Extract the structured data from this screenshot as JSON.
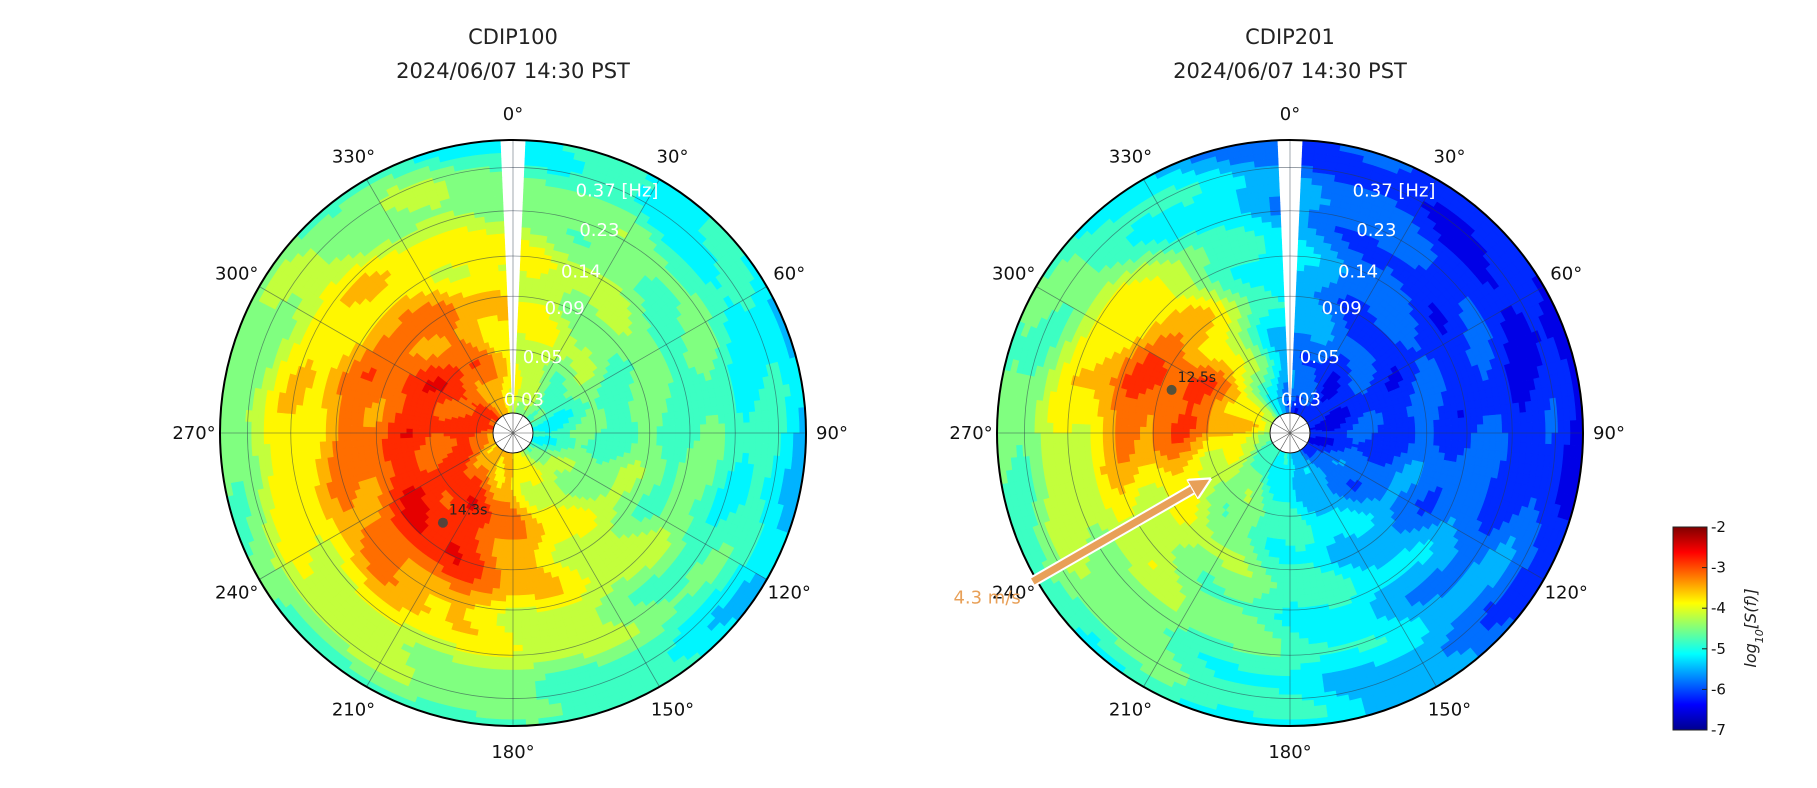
{
  "chart_data": [
    {
      "type": "heatmap",
      "subtype": "polar directional wave spectrum",
      "title": "CDIP100",
      "subtitle": "2024/06/07 14:30 PST",
      "angle_ticks": [
        "0°",
        "30°",
        "60°",
        "90°",
        "120°",
        "150°",
        "180°",
        "210°",
        "240°",
        "270°",
        "300°",
        "330°"
      ],
      "radial_ticks": [
        {
          "value": 0.03,
          "label": "0.03"
        },
        {
          "value": 0.05,
          "label": "0.05"
        },
        {
          "value": 0.09,
          "label": "0.09"
        },
        {
          "value": 0.14,
          "label": "0.14"
        },
        {
          "value": 0.23,
          "label": "0.23"
        },
        {
          "value": 0.37,
          "label": "0.37 [Hz]"
        }
      ],
      "radial_scale": "log",
      "clockwise": true,
      "zero_direction": "top",
      "background_level": -6.0,
      "blobs": [
        {
          "dir": 292,
          "freq": 0.045,
          "level": -3.0,
          "spread_dir": 28,
          "spread_logf": 0.22
        },
        {
          "dir": 218,
          "freq": 0.07,
          "level": -2.8,
          "spread_dir": 20,
          "spread_logf": 0.15
        },
        {
          "dir": 255,
          "freq": 0.06,
          "level": -3.3,
          "spread_dir": 55,
          "spread_logf": 0.35
        },
        {
          "dir": 300,
          "freq": 0.09,
          "level": -4.3,
          "spread_dir": 80,
          "spread_logf": 0.4
        },
        {
          "dir": 40,
          "freq": 0.3,
          "level": -6.8,
          "spread_dir": 50,
          "spread_logf": 0.3
        },
        {
          "dir": 130,
          "freq": 0.12,
          "level": -5.0,
          "spread_dir": 60,
          "spread_logf": 0.4
        }
      ],
      "peak": {
        "dir": 218,
        "freq": 0.07,
        "label": "14.3s"
      }
    },
    {
      "type": "heatmap",
      "subtype": "polar directional wave spectrum",
      "title": "CDIP201",
      "subtitle": "2024/06/07 14:30 PST",
      "angle_ticks": [
        "0°",
        "30°",
        "60°",
        "90°",
        "120°",
        "150°",
        "180°",
        "210°",
        "240°",
        "270°",
        "300°",
        "330°"
      ],
      "radial_ticks": [
        {
          "value": 0.03,
          "label": "0.03"
        },
        {
          "value": 0.05,
          "label": "0.05"
        },
        {
          "value": 0.09,
          "label": "0.09"
        },
        {
          "value": 0.14,
          "label": "0.14"
        },
        {
          "value": 0.23,
          "label": "0.23"
        },
        {
          "value": 0.37,
          "label": "0.37 [Hz]"
        }
      ],
      "radial_scale": "log",
      "clockwise": true,
      "zero_direction": "top",
      "background_level": -6.2,
      "blobs": [
        {
          "dir": 288,
          "freq": 0.08,
          "level": -3.0,
          "spread_dir": 18,
          "spread_logf": 0.2
        },
        {
          "dir": 265,
          "freq": 0.1,
          "level": -4.2,
          "spread_dir": 35,
          "spread_logf": 0.35
        },
        {
          "dir": 245,
          "freq": 0.14,
          "level": -4.6,
          "spread_dir": 50,
          "spread_logf": 0.45
        },
        {
          "dir": 110,
          "freq": 0.05,
          "level": -7.2,
          "spread_dir": 70,
          "spread_logf": 0.2
        }
      ],
      "peak": {
        "dir": 290,
        "freq": 0.08,
        "label": "12.5s"
      },
      "wind": {
        "direction_deg": 240,
        "speed_label": "4.3 m/s",
        "color": "#e8a058"
      }
    }
  ],
  "colorbar": {
    "label": "log10[S(f)]",
    "range": [
      -7,
      -2
    ],
    "ticks": [
      "-2",
      "-3",
      "-4",
      "-5",
      "-6",
      "-7"
    ],
    "colormap": "jet"
  }
}
